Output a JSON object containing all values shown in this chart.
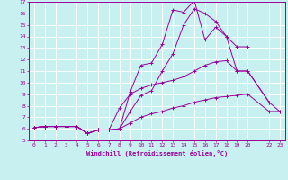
{
  "bg_color": "#c8f0f0",
  "line_color": "#990099",
  "grid_color": "#ffffff",
  "xlabel": "Windchill (Refroidissement éolien,°C)",
  "xlim": [
    -0.5,
    23.5
  ],
  "ylim": [
    5,
    17
  ],
  "xticks": [
    0,
    1,
    2,
    3,
    4,
    5,
    6,
    7,
    8,
    9,
    10,
    11,
    12,
    13,
    14,
    15,
    16,
    17,
    18,
    19,
    20,
    22,
    23
  ],
  "xtick_labels": [
    "0",
    "1",
    "2",
    "3",
    "4",
    "5",
    "6",
    "7",
    "8",
    "9",
    "10",
    "11",
    "12",
    "13",
    "14",
    "15",
    "16",
    "17",
    "18",
    "19",
    "20",
    "22",
    "23"
  ],
  "yticks": [
    5,
    6,
    7,
    8,
    9,
    10,
    11,
    12,
    13,
    14,
    15,
    16,
    17
  ],
  "ytick_labels": [
    "5",
    "6",
    "7",
    "8",
    "9",
    "10",
    "11",
    "12",
    "13",
    "14",
    "15",
    "16",
    "17"
  ],
  "lines": [
    {
      "x": [
        0,
        1,
        2,
        3,
        4,
        5,
        6,
        7,
        8,
        9,
        10,
        11,
        12,
        13,
        14,
        15,
        16,
        17,
        18,
        19,
        20
      ],
      "y": [
        6.1,
        6.2,
        6.2,
        6.2,
        6.2,
        5.6,
        5.9,
        5.9,
        6.0,
        9.2,
        11.5,
        11.7,
        13.3,
        16.3,
        16.1,
        17.1,
        13.7,
        14.8,
        14.0,
        13.1,
        13.1
      ]
    },
    {
      "x": [
        0,
        1,
        2,
        3,
        4,
        5,
        6,
        7,
        8,
        9,
        10,
        11,
        12,
        13,
        14,
        15,
        16,
        17,
        18,
        19,
        20,
        22
      ],
      "y": [
        6.1,
        6.2,
        6.2,
        6.2,
        6.2,
        5.6,
        5.9,
        5.9,
        6.0,
        7.5,
        8.9,
        9.3,
        11.0,
        12.5,
        15.0,
        16.4,
        16.0,
        15.3,
        14.0,
        11.0,
        11.0,
        8.3
      ]
    },
    {
      "x": [
        0,
        1,
        2,
        3,
        4,
        5,
        6,
        7,
        8,
        9,
        10,
        11,
        12,
        13,
        14,
        15,
        16,
        17,
        18,
        19,
        20,
        22,
        23
      ],
      "y": [
        6.1,
        6.2,
        6.2,
        6.2,
        6.2,
        5.6,
        5.9,
        5.9,
        7.8,
        9.0,
        9.5,
        9.8,
        10.0,
        10.2,
        10.5,
        11.0,
        11.5,
        11.8,
        11.9,
        11.0,
        11.0,
        8.3,
        7.5
      ]
    },
    {
      "x": [
        0,
        1,
        2,
        3,
        4,
        5,
        6,
        7,
        8,
        9,
        10,
        11,
        12,
        13,
        14,
        15,
        16,
        17,
        18,
        19,
        20,
        22,
        23
      ],
      "y": [
        6.1,
        6.2,
        6.2,
        6.2,
        6.2,
        5.6,
        5.9,
        5.9,
        6.0,
        6.5,
        7.0,
        7.3,
        7.5,
        7.8,
        8.0,
        8.3,
        8.5,
        8.7,
        8.8,
        8.9,
        9.0,
        7.5,
        7.5
      ]
    }
  ]
}
